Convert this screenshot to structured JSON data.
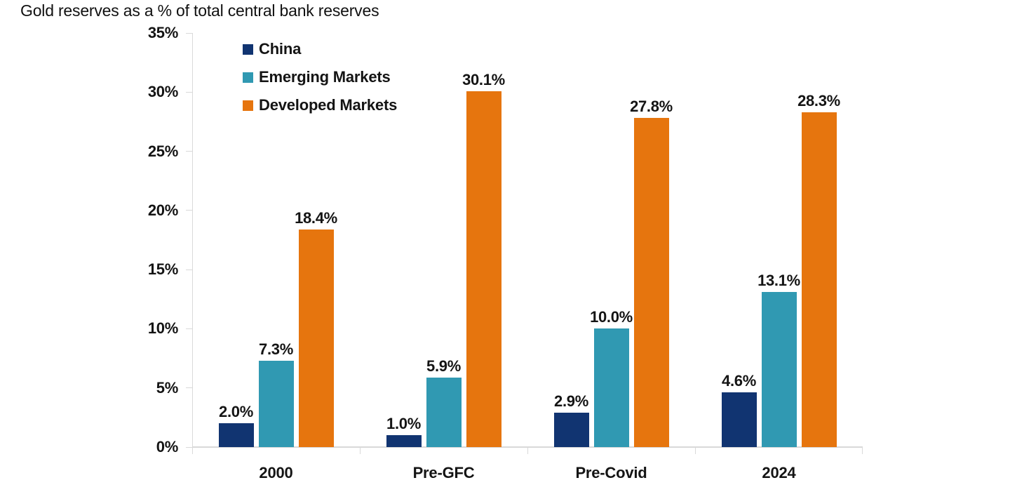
{
  "colors": {
    "china": "#113471",
    "emerging_markets": "#3099b2",
    "developed_markets": "#e6750e",
    "axis": "#d9d9d9",
    "text": "#141414",
    "background": "#ffffff"
  },
  "chart_data": {
    "type": "bar",
    "title": "Gold reserves as a % of total central bank reserves",
    "categories": [
      "2000",
      "Pre-GFC",
      "Pre-Covid",
      "2024"
    ],
    "series": [
      {
        "name": "China",
        "color": "#113471",
        "values": [
          2.0,
          1.0,
          2.9,
          4.6
        ],
        "labels": [
          "2.0%",
          "1.0%",
          "2.9%",
          "4.6%"
        ]
      },
      {
        "name": "Emerging Markets",
        "color": "#3099b2",
        "values": [
          7.3,
          5.9,
          10.0,
          13.1
        ],
        "labels": [
          "7.3%",
          "5.9%",
          "10.0%",
          "13.1%"
        ]
      },
      {
        "name": "Developed Markets",
        "color": "#e6750e",
        "values": [
          18.4,
          30.1,
          27.8,
          28.3
        ],
        "labels": [
          "18.4%",
          "30.1%",
          "27.8%",
          "28.3%"
        ]
      }
    ],
    "xlabel": "",
    "ylabel": "",
    "ylim": [
      0,
      35
    ],
    "yticks": [
      "35%",
      "30%",
      "25%",
      "20%",
      "15%",
      "10%",
      "5%",
      "0%"
    ],
    "ytick_values": [
      35,
      30,
      25,
      20,
      15,
      10,
      5,
      0
    ],
    "grid": false,
    "legend_position": "inside-top-left"
  }
}
